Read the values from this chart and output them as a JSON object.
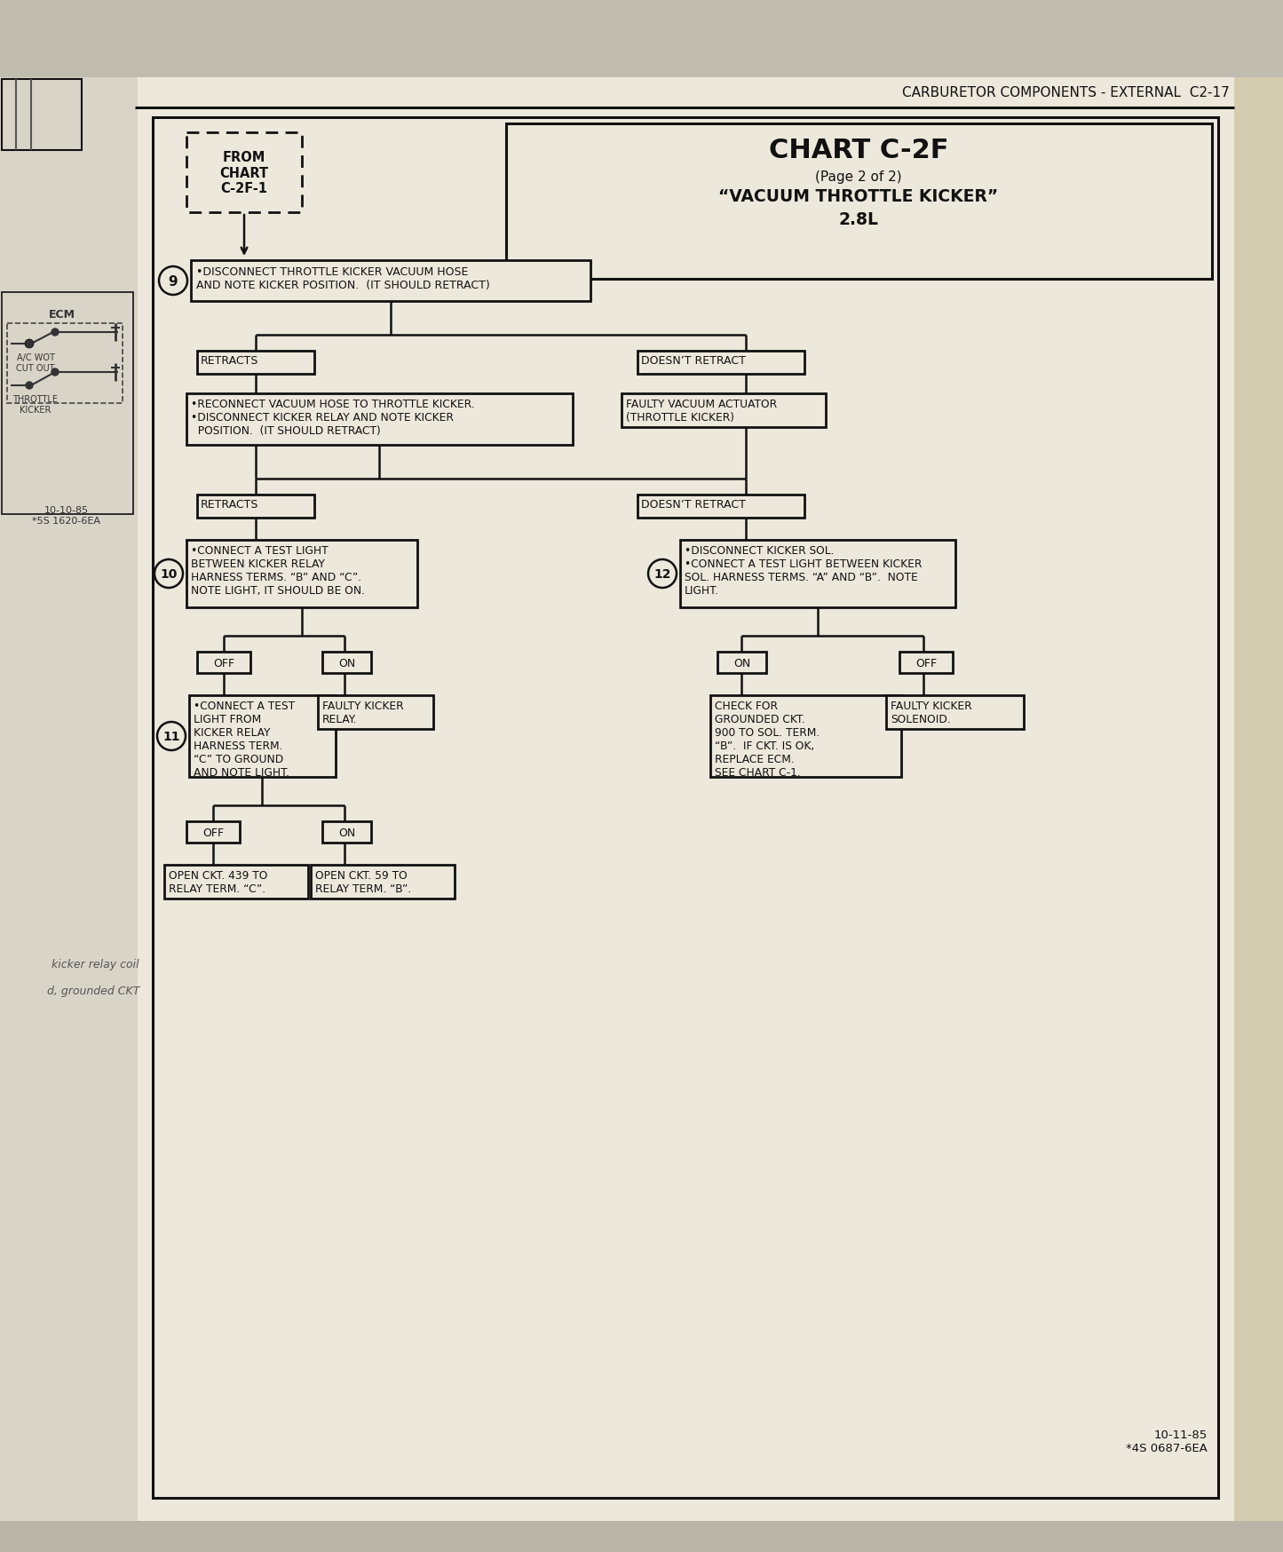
{
  "header": "CARBURETOR COMPONENTS - EXTERNAL  C2-17",
  "title1": "CHART C-2F",
  "title2": "(Page 2 of 2)",
  "title3": "“VACUUM THROTTLE KICKER”",
  "title4": "2.8L",
  "from_chart": "FROM\nCHART\nC-2F-1",
  "s9": "•DISCONNECT THROTTLE KICKER VACUUM HOSE\nAND NOTE KICKER POSITION.  (IT SHOULD RETRACT)",
  "retracts": "RETRACTS",
  "no_retract": "DOESN’T RETRACT",
  "reconnect": "•RECONNECT VACUUM HOSE TO THROTTLE KICKER.\n•DISCONNECT KICKER RELAY AND NOTE KICKER\n  POSITION.  (IT SHOULD RETRACT)",
  "faulty_vac": "FAULTY VACUUM ACTUATOR\n(THROTTLE KICKER)",
  "s10": "•CONNECT A TEST LIGHT\nBETWEEN KICKER RELAY\nHARNESS TERMS. “B” AND “C”.\nNOTE LIGHT, IT SHOULD BE ON.",
  "s12": "•DISCONNECT KICKER SOL.\n•CONNECT A TEST LIGHT BETWEEN KICKER\nSOL. HARNESS TERMS. “A” AND “B”.  NOTE\nLIGHT.",
  "s11": "•CONNECT A TEST\nLIGHT FROM\nKICKER RELAY\nHARNESS TERM.\n“C” TO GROUND\nAND NOTE LIGHT.",
  "faulty_relay": "FAULTY KICKER\nRELAY.",
  "check_gnd": "CHECK FOR\nGROUNDED CKT.\n900 TO SOL. TERM.\n“B”.  IF CKT. IS OK,\nREPLACE ECM.\nSEE CHART C-1.",
  "faulty_sol": "FAULTY KICKER\nSOLENOID.",
  "open439": "OPEN CKT. 439 TO\nRELAY TERM. “C”.",
  "open59": "OPEN CKT. 59 TO\nRELAY TERM. “B”.",
  "footer": "10-11-85\n*4S 0687-6EA",
  "ecm_label": "ECM",
  "ac_wot": "A/C WOT\nCUT OUT",
  "throttle_kicker": "THROTTLE\nKICKER",
  "left_footer": "10-10-85\n*5S 1620-6EA",
  "left_side_text1": "kicker relay coil",
  "left_side_text2": "d, grounded CKT",
  "page_color": "#ede8dc",
  "bg_color": "#b8b4a8",
  "line_color": "#111111",
  "left_bg": "#d8d4c8"
}
